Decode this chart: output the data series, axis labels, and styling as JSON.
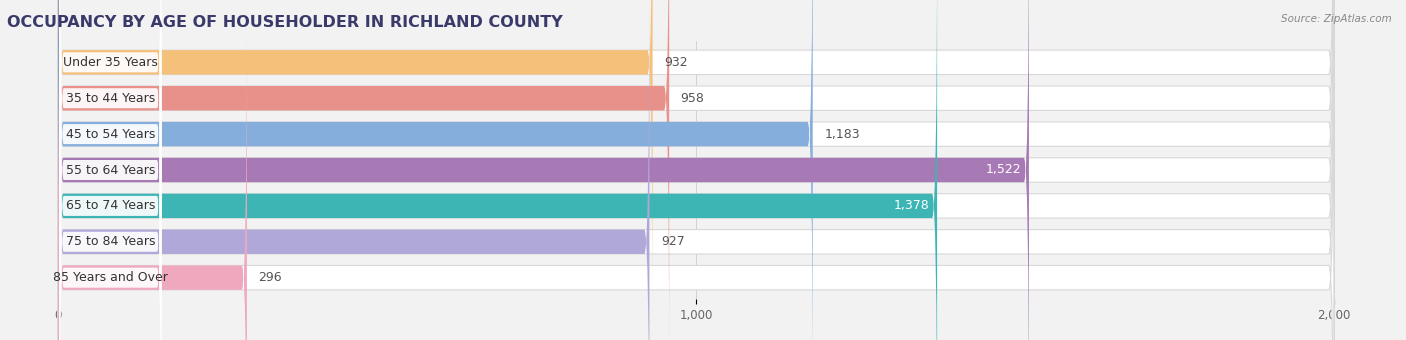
{
  "title": "OCCUPANCY BY AGE OF HOUSEHOLDER IN RICHLAND COUNTY",
  "source": "Source: ZipAtlas.com",
  "categories": [
    "Under 35 Years",
    "35 to 44 Years",
    "45 to 54 Years",
    "55 to 64 Years",
    "65 to 74 Years",
    "75 to 84 Years",
    "85 Years and Over"
  ],
  "values": [
    932,
    958,
    1183,
    1522,
    1378,
    927,
    296
  ],
  "bar_colors": [
    "#f5c07a",
    "#e8908a",
    "#85aedd",
    "#a87ab5",
    "#3db5b5",
    "#b0a8d8",
    "#f0a8be"
  ],
  "xlim_min": -80,
  "xlim_max": 2080,
  "xticks": [
    0,
    1000,
    2000
  ],
  "xticklabels": [
    "0",
    "1,000",
    "2,000"
  ],
  "background_color": "#f2f2f2",
  "bar_bg_color": "#e8e8e8",
  "title_fontsize": 11.5,
  "label_fontsize": 9,
  "value_fontsize": 9,
  "title_color": "#3a3a6a",
  "source_color": "#888888"
}
